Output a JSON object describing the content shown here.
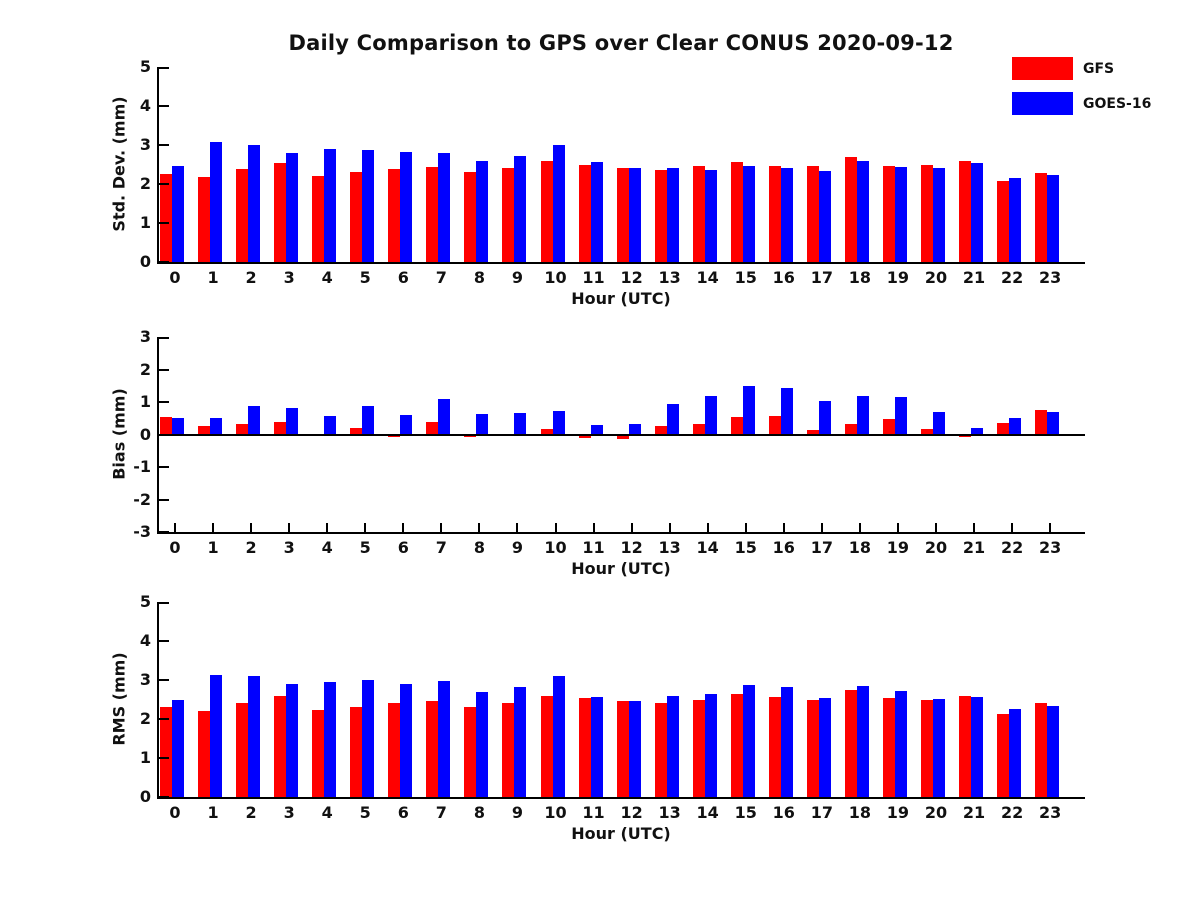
{
  "figure": {
    "title": "Daily Comparison to GPS over Clear CONUS 2020-09-12",
    "background": "#ffffff"
  },
  "legend": {
    "position": "upper-right-outside",
    "entries": [
      {
        "label": "GFS",
        "color": "#ff0000"
      },
      {
        "label": "GOES-16",
        "color": "#0000ff"
      }
    ]
  },
  "colors": {
    "gfs": "#ff0000",
    "goes16": "#0000ff",
    "axis": "#000000",
    "text": "#111111"
  },
  "chart_data": [
    {
      "type": "bar",
      "title": "",
      "ylabel": "Std. Dev. (mm)",
      "xlabel": "Hour (UTC)",
      "ylim": [
        0,
        5
      ],
      "yticks": [
        0,
        1,
        2,
        3,
        4,
        5
      ],
      "grid": false,
      "categories": [
        "0",
        "1",
        "2",
        "3",
        "4",
        "5",
        "6",
        "7",
        "8",
        "9",
        "10",
        "11",
        "12",
        "13",
        "14",
        "15",
        "16",
        "17",
        "18",
        "19",
        "20",
        "21",
        "22",
        "23"
      ],
      "series": [
        {
          "name": "GFS",
          "color": "#ff0000",
          "values": [
            2.25,
            2.18,
            2.38,
            2.53,
            2.2,
            2.3,
            2.38,
            2.43,
            2.3,
            2.4,
            2.58,
            2.5,
            2.42,
            2.37,
            2.46,
            2.56,
            2.47,
            2.47,
            2.7,
            2.46,
            2.49,
            2.58,
            2.08,
            2.27
          ]
        },
        {
          "name": "GOES-16",
          "color": "#0000ff",
          "values": [
            2.46,
            3.08,
            2.99,
            2.79,
            2.91,
            2.87,
            2.83,
            2.79,
            2.6,
            2.71,
            2.99,
            2.56,
            2.42,
            2.42,
            2.36,
            2.47,
            2.42,
            2.33,
            2.6,
            2.44,
            2.41,
            2.54,
            2.16,
            2.23
          ]
        }
      ]
    },
    {
      "type": "bar",
      "title": "",
      "ylabel": "Bias (mm)",
      "xlabel": "Hour (UTC)",
      "ylim": [
        -3,
        3
      ],
      "yticks": [
        -3,
        -2,
        -1,
        0,
        1,
        2,
        3
      ],
      "grid": false,
      "zero_line": true,
      "categories": [
        "0",
        "1",
        "2",
        "3",
        "4",
        "5",
        "6",
        "7",
        "8",
        "9",
        "10",
        "11",
        "12",
        "13",
        "14",
        "15",
        "16",
        "17",
        "18",
        "19",
        "20",
        "21",
        "22",
        "23"
      ],
      "series": [
        {
          "name": "GFS",
          "color": "#ff0000",
          "values": [
            0.55,
            0.27,
            0.32,
            0.38,
            -0.06,
            0.2,
            -0.07,
            0.38,
            -0.08,
            0.0,
            0.16,
            -0.1,
            -0.13,
            0.26,
            0.32,
            0.53,
            0.58,
            0.15,
            0.32,
            0.48,
            0.18,
            -0.07,
            0.35,
            0.76
          ]
        },
        {
          "name": "GOES-16",
          "color": "#0000ff",
          "values": [
            0.5,
            0.5,
            0.88,
            0.82,
            0.57,
            0.88,
            0.6,
            1.09,
            0.63,
            0.66,
            0.72,
            0.28,
            0.33,
            0.95,
            1.18,
            1.48,
            1.43,
            1.03,
            1.18,
            1.15,
            0.68,
            0.2,
            0.51,
            0.69
          ]
        }
      ]
    },
    {
      "type": "bar",
      "title": "",
      "ylabel": "RMS (mm)",
      "xlabel": "Hour (UTC)",
      "ylim": [
        0,
        5
      ],
      "yticks": [
        0,
        1,
        2,
        3,
        4,
        5
      ],
      "grid": false,
      "categories": [
        "0",
        "1",
        "2",
        "3",
        "4",
        "5",
        "6",
        "7",
        "8",
        "9",
        "10",
        "11",
        "12",
        "13",
        "14",
        "15",
        "16",
        "17",
        "18",
        "19",
        "20",
        "21",
        "22",
        "23"
      ],
      "series": [
        {
          "name": "GFS",
          "color": "#ff0000",
          "values": [
            2.32,
            2.21,
            2.42,
            2.6,
            2.22,
            2.32,
            2.4,
            2.46,
            2.32,
            2.41,
            2.6,
            2.53,
            2.46,
            2.4,
            2.5,
            2.64,
            2.56,
            2.5,
            2.74,
            2.53,
            2.48,
            2.59,
            2.14,
            2.4
          ]
        },
        {
          "name": "GOES-16",
          "color": "#0000ff",
          "values": [
            2.49,
            3.14,
            3.11,
            2.91,
            2.95,
            3.01,
            2.91,
            2.98,
            2.68,
            2.81,
            3.09,
            2.57,
            2.45,
            2.6,
            2.63,
            2.86,
            2.81,
            2.55,
            2.84,
            2.71,
            2.52,
            2.56,
            2.25,
            2.34
          ]
        }
      ]
    }
  ]
}
